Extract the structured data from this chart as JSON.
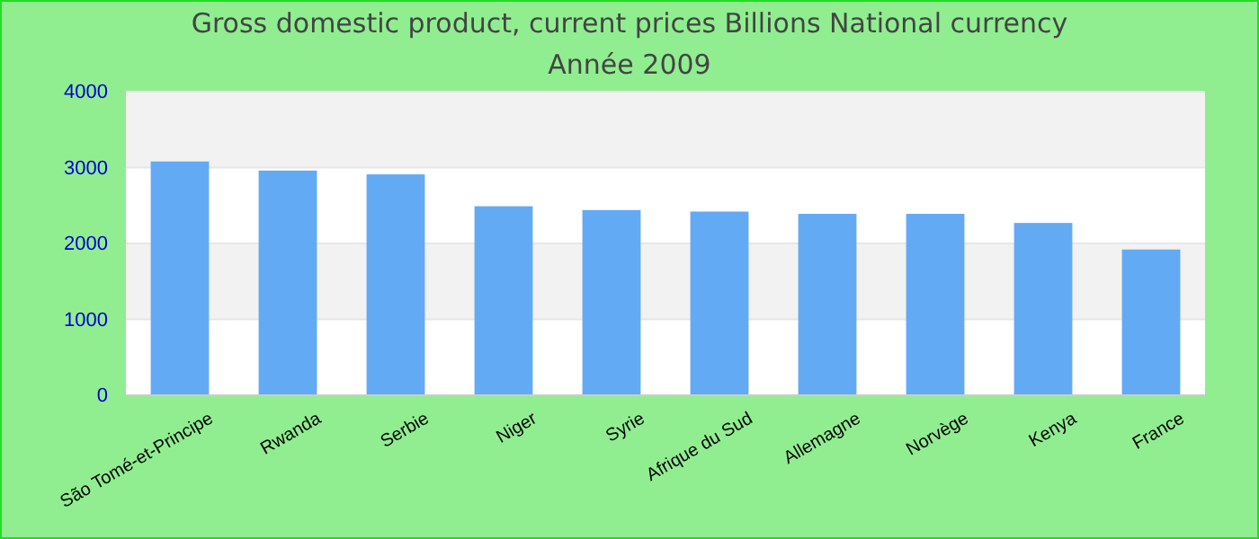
{
  "chart_data": {
    "type": "bar",
    "title": "Gross domestic product, current prices Billions National currency",
    "subtitle": "Année 2009",
    "categories": [
      "São Tomé-et-Principe",
      "Rwanda",
      "Serbie",
      "Niger",
      "Syrie",
      "Afrique du Sud",
      "Allemagne",
      "Norvège",
      "Kenya",
      "France"
    ],
    "values": [
      3080,
      2960,
      2910,
      2490,
      2440,
      2420,
      2390,
      2390,
      2270,
      1920
    ],
    "color": "#63aaf5",
    "ylim": [
      0,
      4000
    ],
    "yticks": [
      0,
      1000,
      2000,
      3000,
      4000
    ],
    "grid": "y"
  }
}
